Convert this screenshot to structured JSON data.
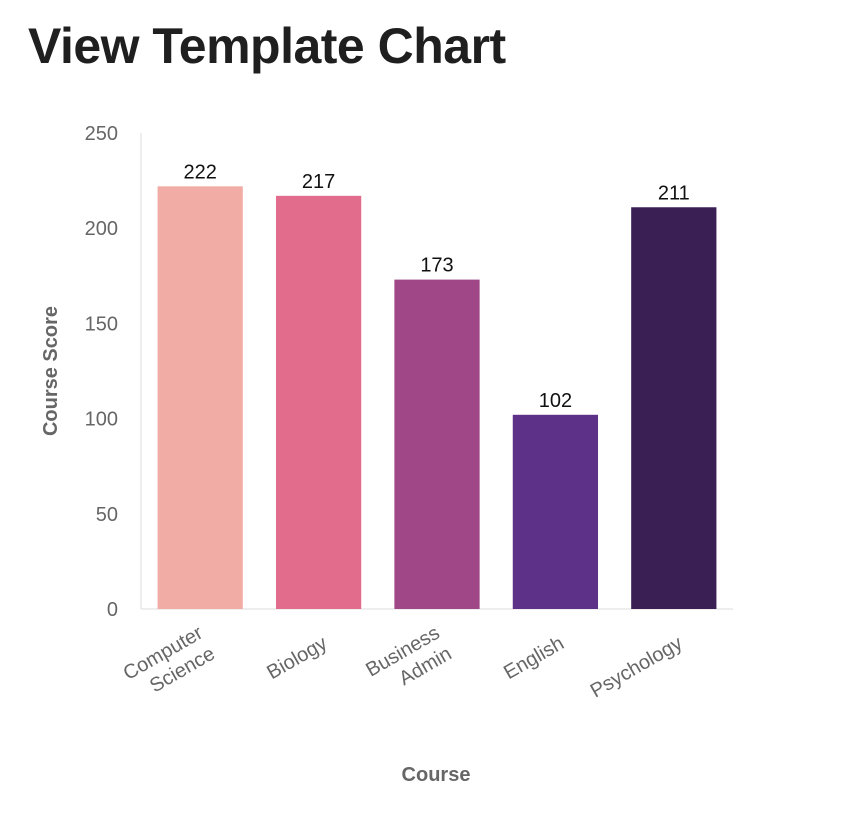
{
  "page": {
    "title": "View Template Chart"
  },
  "chart_data": {
    "type": "bar",
    "categories": [
      "Computer Science",
      "Biology",
      "Business Admin",
      "English",
      "Psychology"
    ],
    "category_lines": [
      [
        "Computer",
        "Science"
      ],
      [
        "Biology"
      ],
      [
        "Business",
        "Admin"
      ],
      [
        "English"
      ],
      [
        "Psychology"
      ]
    ],
    "values": [
      222,
      217,
      173,
      102,
      211
    ],
    "colors": [
      "#f1aca5",
      "#e16c8b",
      "#9f4787",
      "#5e3188",
      "#3a1f55"
    ],
    "xlabel": "Course",
    "ylabel": "Course Score",
    "ylim": [
      0,
      250
    ],
    "yticks": [
      0,
      50,
      100,
      150,
      200,
      250
    ],
    "grid": false,
    "data_labels": true
  }
}
